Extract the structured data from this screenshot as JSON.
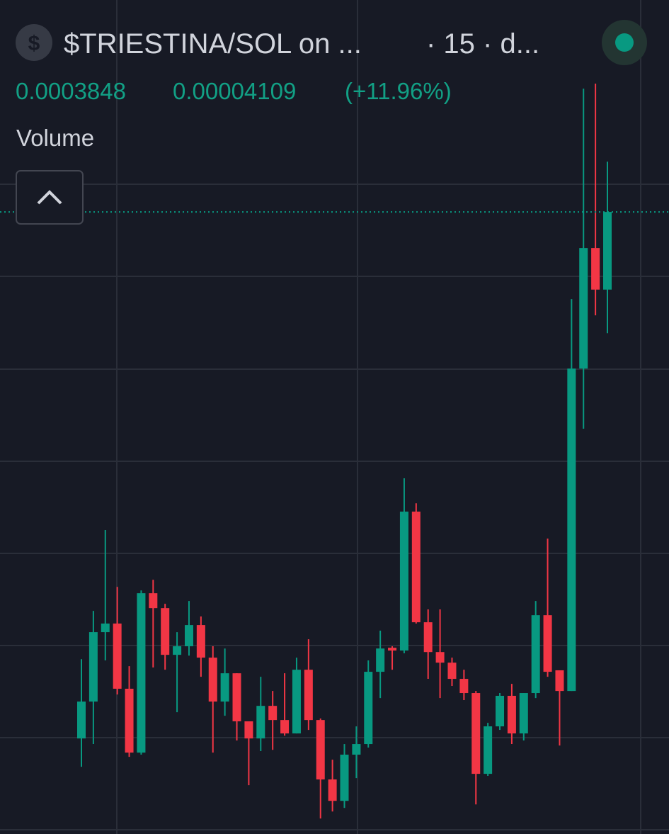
{
  "chart_data": {
    "type": "candlestick",
    "title": "$TRIESTINA/SOL on ...",
    "subtitle": "· 15 · d...",
    "change": 4.109e-05,
    "change_percent_label": "(+11.96%)",
    "pane_label": "Volume",
    "up_color": "#089981",
    "down_color": "#f23645",
    "ylim": [
      5.08e-05,
      0.0004986
    ],
    "open": [
      0.0001021,
      0.0001219,
      0.0001592,
      0.0001638,
      0.0001288,
      9.45e-05,
      0.0001801,
      0.0001721,
      0.000147,
      0.0001516,
      0.000163,
      0.0001455,
      0.0001219,
      0.0001371,
      0.0001113,
      0.0001021,
      0.0001196,
      0.000112,
      0.0001048,
      0.000139,
      0.000112,
      8.01e-05,
      6.86e-05,
      9.34e-05,
      9.91e-05,
      0.0001379,
      0.0001508,
      0.0001493,
      0.0002239,
      0.0001645,
      0.0001485,
      0.0001428,
      0.0001341,
      0.0001265,
      8.31e-05,
      0.0001086,
      0.000125,
      0.0001048,
      0.0001265,
      0.0001683,
      0.0001387,
      0.0001276,
      0.0003007,
      0.0003654,
      0.0003431
    ],
    "close": [
      0.0001219,
      0.0001592,
      0.0001638,
      0.0001288,
      9.45e-05,
      0.0001801,
      0.0001721,
      0.000147,
      0.0001516,
      0.000163,
      0.0001455,
      0.0001219,
      0.0001371,
      0.0001113,
      0.0001021,
      0.0001196,
      0.000112,
      0.0001048,
      0.000139,
      0.000112,
      8.01e-05,
      6.86e-05,
      9.34e-05,
      9.91e-05,
      0.0001379,
      0.0001504,
      0.0001493,
      0.0002239,
      0.0001645,
      0.0001485,
      0.0001428,
      0.0001341,
      0.0001265,
      8.31e-05,
      0.0001086,
      0.000125,
      0.0001048,
      0.0001265,
      0.0001683,
      0.0001379,
      0.0001276,
      0.0003007,
      0.0003654,
      0.0003431,
      0.0003848
    ],
    "high": [
      0.0001447,
      0.0001706,
      0.000214,
      0.0001835,
      0.0001409,
      0.0001816,
      0.0001873,
      0.0001744,
      0.0001592,
      0.0001759,
      0.0001676,
      0.0001516,
      0.0001504,
      0.0001371,
      0.0001113,
      0.0001352,
      0.0001276,
      0.0001371,
      0.0001455,
      0.0001554,
      0.0001128,
      9.07e-05,
      9.91e-05,
      0.0001086,
      0.000144,
      0.00016,
      0.0001516,
      0.0002418,
      0.0002284,
      0.0001714,
      0.0001714,
      0.0001455,
      0.000139,
      0.0001276,
      0.0001105,
      0.0001265,
      0.0001314,
      0.0001265,
      0.0001759,
      0.0002094,
      0.0001387,
      0.000338,
      0.000451,
      0.0004537,
      0.0004118
    ],
    "low": [
      8.69e-05,
      9.91e-05,
      0.000144,
      0.0001257,
      9.22e-05,
      9.34e-05,
      0.0001402,
      0.000139,
      0.0001162,
      0.0001466,
      0.0001352,
      9.45e-05,
      0.0001143,
      0.000101,
      7.7e-05,
      9.53e-05,
      9.6e-05,
      0.0001036,
      0.0001048,
      0.0001067,
      5.91e-05,
      6.29e-05,
      6.48e-05,
      8.08e-05,
      9.72e-05,
      0.0001238,
      0.000139,
      0.0001478,
      0.0001638,
      0.0001341,
      0.0001238,
      0.0001303,
      0.0001227,
      6.67e-05,
      8.2e-05,
      0.0001067,
      9.91e-05,
      0.000101,
      0.0001238,
      0.0001352,
      9.83e-05,
      0.0001276,
      0.0002684,
      0.0003293,
      0.0003197
    ]
  }
}
